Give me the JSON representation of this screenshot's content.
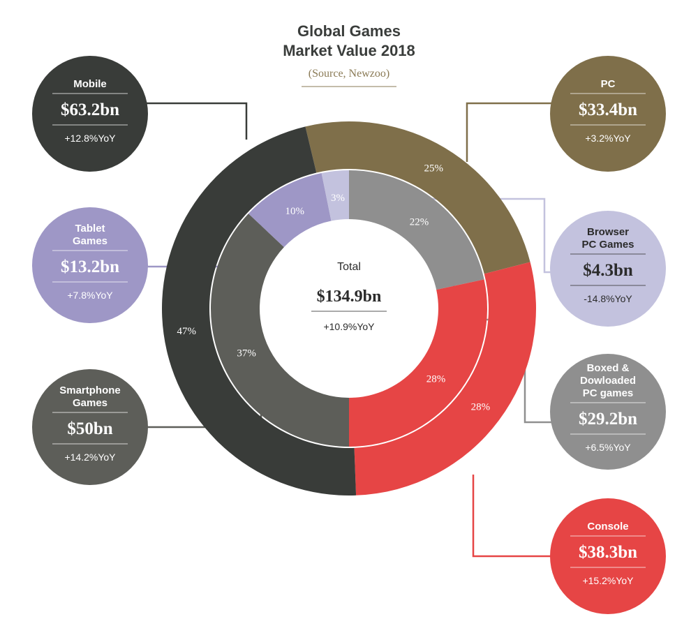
{
  "title_line1": "Global Games",
  "title_line2": "Market Value 2018",
  "source": "(Source, Newzoo)",
  "center": {
    "label": "Total",
    "value": "$134.9bn",
    "yoy": "+10.9%YoY"
  },
  "chart_data": {
    "type": "pie",
    "title": "Global Games Market Value 2018",
    "subtitle": "(Source, Newzoo)",
    "total": 134.9,
    "unit": "$bn",
    "outer_ring": [
      {
        "name": "PC",
        "value": 33.4,
        "percent": 25,
        "percent_label": "25%",
        "color": "#7f6f4a"
      },
      {
        "name": "Console",
        "value": 38.3,
        "percent": 28,
        "percent_label": "28%",
        "color": "#e64545"
      },
      {
        "name": "Mobile",
        "value": 63.2,
        "percent": 47,
        "percent_label": "47%",
        "color": "#393c39"
      }
    ],
    "inner_ring": [
      {
        "name": "Boxed & Dowloaded PC games",
        "value": 29.2,
        "percent": 22,
        "percent_label": "22%",
        "color": "#8f8f8f"
      },
      {
        "name": "Console",
        "value": 38.3,
        "percent": 28,
        "percent_label": "28%",
        "color": "#e64545"
      },
      {
        "name": "Smartphone Games",
        "value": 50,
        "percent": 37,
        "percent_label": "37%",
        "color": "#5d5e59"
      },
      {
        "name": "Tablet Games",
        "value": 13.2,
        "percent": 10,
        "percent_label": "10%",
        "color": "#9e97c6"
      },
      {
        "name": "Browser PC Games",
        "value": 4.3,
        "percent": 3,
        "percent_label": "3%",
        "color": "#c3c2de"
      }
    ]
  },
  "callouts": [
    {
      "id": "mobile",
      "lines": [
        "Mobile"
      ],
      "value": "$63.2bn",
      "yoy": "+12.8%YoY",
      "color": "#393c39"
    },
    {
      "id": "tablet",
      "lines": [
        "Tablet",
        "Games"
      ],
      "value": "$13.2bn",
      "yoy": "+7.8%YoY",
      "color": "#9e97c6"
    },
    {
      "id": "smartphone",
      "lines": [
        "Smartphone",
        "Games"
      ],
      "value": "$50bn",
      "yoy": "+14.2%YoY",
      "color": "#5d5e59"
    },
    {
      "id": "pc",
      "lines": [
        "PC"
      ],
      "value": "$33.4bn",
      "yoy": "+3.2%YoY",
      "color": "#7f6f4a"
    },
    {
      "id": "browser",
      "lines": [
        "Browser",
        "PC Games"
      ],
      "value": "$4.3bn",
      "yoy": "-14.8%YoY",
      "color": "#c3c2de"
    },
    {
      "id": "boxed",
      "lines": [
        "Boxed &",
        "Dowloaded",
        "PC games"
      ],
      "value": "$29.2bn",
      "yoy": "+6.5%YoY",
      "color": "#8f8f8f"
    },
    {
      "id": "console",
      "lines": [
        "Console"
      ],
      "value": "$38.3bn",
      "yoy": "+15.2%YoY",
      "color": "#e64545"
    }
  ]
}
